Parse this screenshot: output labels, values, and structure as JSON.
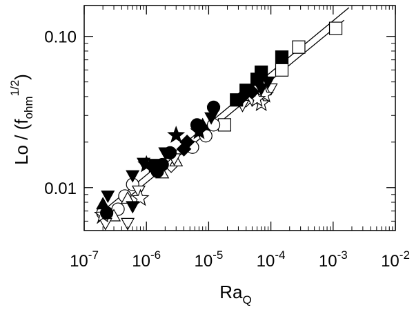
{
  "chart_data": {
    "type": "scatter",
    "x_scale": "log",
    "y_scale": "log",
    "xlim": [
      1e-07,
      0.01
    ],
    "ylim": [
      0.0052,
      0.16
    ],
    "grid": false,
    "legend": "none",
    "x_ticks": [
      {
        "value": 1e-07,
        "base": "10",
        "exp": "-7"
      },
      {
        "value": 1e-06,
        "base": "10",
        "exp": "-6"
      },
      {
        "value": 1e-05,
        "base": "10",
        "exp": "-5"
      },
      {
        "value": 0.0001,
        "base": "10",
        "exp": "-4"
      },
      {
        "value": 0.001,
        "base": "10",
        "exp": "-3"
      },
      {
        "value": 0.01,
        "base": "10",
        "exp": "-2"
      }
    ],
    "y_ticks": [
      {
        "value": 0.01,
        "label": "0.01"
      },
      {
        "value": 0.1,
        "label": "0.10"
      }
    ],
    "xlabel": {
      "main": "Ra",
      "sub": "Q"
    },
    "ylabel": {
      "main": "Lo / (f",
      "sub": "ohm",
      "sup": "1/2",
      "close": ")"
    },
    "lines": [
      {
        "points": [
          [
            1.6e-07,
            0.0065
          ],
          [
            0.0018,
            0.155
          ]
        ]
      },
      {
        "points": [
          [
            1.6e-07,
            0.0058
          ],
          [
            0.0015,
            0.128
          ]
        ]
      }
    ],
    "series": [
      {
        "marker": "filled-square",
        "points": [
          [
            0.00015,
            0.073
          ],
          [
            7e-05,
            0.058
          ],
          [
            6e-05,
            0.052
          ],
          [
            4e-05,
            0.044
          ],
          [
            2.8e-05,
            0.038
          ],
          [
            1.4e-06,
            0.014
          ]
        ]
      },
      {
        "marker": "filled-down-triangle",
        "points": [
          [
            9e-05,
            0.05
          ],
          [
            7e-05,
            0.045
          ],
          [
            1.2e-05,
            0.032
          ],
          [
            1.1e-05,
            0.029
          ],
          [
            7e-06,
            0.024
          ],
          [
            2e-06,
            0.017
          ],
          [
            9e-07,
            0.0145
          ],
          [
            6e-07,
            0.012
          ],
          [
            2.4e-07,
            0.0088
          ],
          [
            6e-07,
            0.0075
          ]
        ]
      },
      {
        "marker": "filled-circle",
        "points": [
          [
            1.2e-05,
            0.034
          ],
          [
            6.5e-06,
            0.026
          ],
          [
            2.4e-06,
            0.017
          ],
          [
            1.8e-06,
            0.0142
          ],
          [
            1.5e-06,
            0.0128
          ],
          [
            2.3e-07,
            0.0068
          ]
        ]
      },
      {
        "marker": "filled-star",
        "points": [
          [
            3e-06,
            0.0222
          ],
          [
            1e-06,
            0.0142
          ],
          [
            7e-06,
            0.0235
          ]
        ]
      },
      {
        "marker": "filled-diamond",
        "points": [
          [
            5e-05,
            0.043
          ],
          [
            3.5e-05,
            0.04
          ],
          [
            4.5e-06,
            0.02
          ],
          [
            4e-06,
            0.018
          ]
        ]
      },
      {
        "marker": "filled-up-triangle",
        "points": [
          [
            2e-07,
            0.0078
          ],
          [
            8e-06,
            0.026
          ]
        ]
      },
      {
        "marker": "open-square",
        "points": [
          [
            0.0011,
            0.113
          ],
          [
            0.00028,
            0.085
          ],
          [
            0.00015,
            0.06
          ],
          [
            6.5e-05,
            0.047
          ],
          [
            1.8e-05,
            0.026
          ]
        ]
      },
      {
        "marker": "open-circle",
        "points": [
          [
            1.2e-05,
            0.026
          ],
          [
            9e-06,
            0.022
          ],
          [
            5.5e-06,
            0.0185
          ],
          [
            6e-07,
            0.0105
          ],
          [
            4.5e-07,
            0.0088
          ],
          [
            3.5e-07,
            0.0072
          ],
          [
            2e-07,
            0.0068
          ]
        ]
      },
      {
        "marker": "open-diamond",
        "points": [
          [
            4e-05,
            0.038
          ],
          [
            2.5e-06,
            0.014
          ]
        ]
      },
      {
        "marker": "open-up-triangle",
        "points": [
          [
            3e-06,
            0.015
          ],
          [
            1.8e-06,
            0.0125
          ],
          [
            5e-07,
            0.0085
          ],
          [
            3e-07,
            0.0065
          ]
        ]
      },
      {
        "marker": "open-down-triangle",
        "points": [
          [
            0.0001,
            0.045
          ],
          [
            5e-05,
            0.038
          ],
          [
            3.5e-05,
            0.035
          ],
          [
            2.8e-06,
            0.0155
          ],
          [
            7.5e-07,
            0.0095
          ],
          [
            5e-07,
            0.0058
          ],
          [
            2.2e-07,
            0.0058
          ]
        ]
      },
      {
        "marker": "open-star",
        "points": [
          [
            8e-05,
            0.041
          ],
          [
            7e-05,
            0.036
          ],
          [
            6e-05,
            0.0385
          ],
          [
            8e-07,
            0.0085
          ],
          [
            2e-07,
            0.0066
          ]
        ]
      }
    ]
  }
}
